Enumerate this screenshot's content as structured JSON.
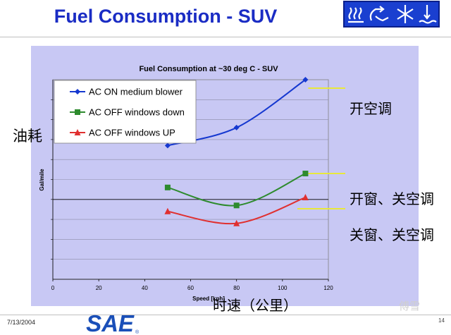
{
  "slide": {
    "title": "Fuel Consumption - SUV",
    "date": "7/13/2004",
    "logo_text": "SAE",
    "page_number": "14",
    "watermark": "傅雪"
  },
  "annotations": {
    "y_axis_cn": "油耗",
    "x_axis_cn": "时速（公里）",
    "series_cn": [
      "开空调",
      "开窗、关空调",
      "关窗、关空调"
    ]
  },
  "colors": {
    "title": "#1a2cc4",
    "plot_bg": "#c8c8f4",
    "highlight": "#e8e83a",
    "series": [
      "#1538d0",
      "#2e8b2e",
      "#e03030"
    ]
  },
  "chart_data": {
    "type": "line",
    "title": "Fuel Consumption at ~30 deg C - SUV",
    "xlabel": "Speed [kph]",
    "ylabel": "Gal/mile",
    "xlim": [
      0,
      120
    ],
    "xticks": [
      "0",
      "20",
      "40",
      "60",
      "80",
      "100",
      "120"
    ],
    "ylim": [
      0,
      10
    ],
    "y_tick_labels": "none",
    "grid": "horizontal",
    "legend_position": "top-left",
    "series": [
      {
        "name": "AC ON medium blower",
        "marker": "diamond",
        "x": [
          50,
          80,
          110
        ],
        "y": [
          6.7,
          7.6,
          10.0
        ]
      },
      {
        "name": "AC OFF windows down",
        "marker": "square",
        "x": [
          50,
          80,
          110
        ],
        "y": [
          4.6,
          3.7,
          5.3
        ]
      },
      {
        "name": "AC OFF windows UP",
        "marker": "triangle",
        "x": [
          50,
          80,
          110
        ],
        "y": [
          3.4,
          2.8,
          4.1
        ]
      }
    ]
  }
}
